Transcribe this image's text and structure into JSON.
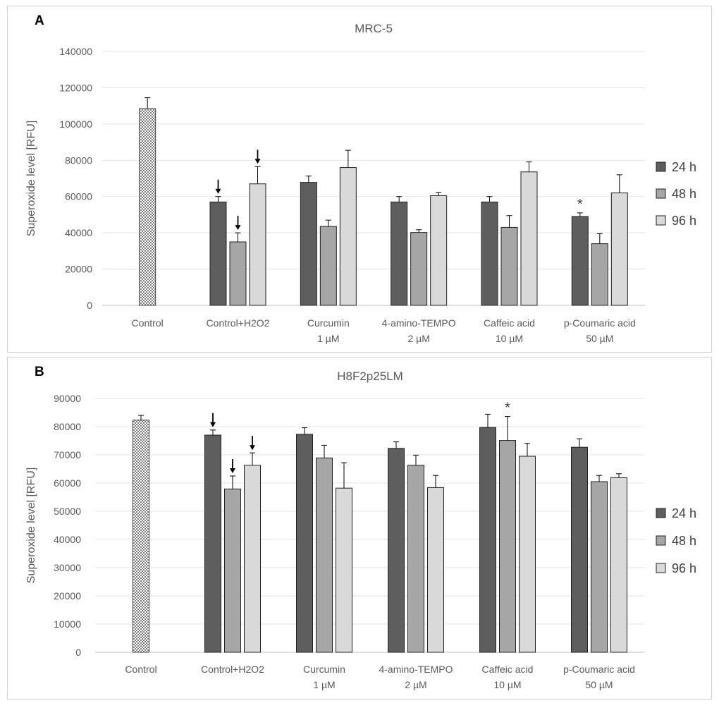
{
  "panels": [
    {
      "letter": "A"
    },
    {
      "letter": "B"
    }
  ],
  "chart_data": [
    {
      "type": "bar",
      "title": "MRC-5",
      "ylabel": "Superoxide level [RFU]",
      "xlabel": "",
      "ylim": [
        0,
        140000
      ],
      "ytick_step": 20000,
      "yticks": [
        "0",
        "20000",
        "40000",
        "60000",
        "80000",
        "100000",
        "120000",
        "140000"
      ],
      "categories": [
        [
          "Control"
        ],
        [
          "Control+H2O2"
        ],
        [
          "Curcumin",
          "1 µM"
        ],
        [
          "4-amino-TEMPO",
          "2 µM"
        ],
        [
          "Caffeic acid",
          "10 µM"
        ],
        [
          "p-Coumaric acid",
          "50 µM"
        ]
      ],
      "control": {
        "value": 108500,
        "error": 6000
      },
      "series": [
        {
          "name": "24 h",
          "color": "#5e5e5e",
          "values": [
            null,
            57000,
            67800,
            57000,
            57000,
            49000
          ],
          "errors": [
            null,
            3000,
            3500,
            3000,
            3000,
            2000
          ]
        },
        {
          "name": "48 h",
          "color": "#a6a6a6",
          "values": [
            null,
            35000,
            43500,
            40200,
            43000,
            34000
          ],
          "errors": [
            null,
            5000,
            3500,
            1500,
            6500,
            5500
          ]
        },
        {
          "name": "96 h",
          "color": "#d9d9d9",
          "values": [
            null,
            67000,
            76000,
            60500,
            73600,
            62000
          ],
          "errors": [
            null,
            9500,
            9500,
            1800,
            5500,
            10000
          ]
        }
      ],
      "arrows": [
        {
          "category": 1,
          "series": 0
        },
        {
          "category": 1,
          "series": 1
        },
        {
          "category": 1,
          "series": 2
        }
      ],
      "asterisks": [
        {
          "category": 5,
          "series": 0,
          "text": "*"
        }
      ],
      "legend": "right"
    },
    {
      "type": "bar",
      "title": "H8F2p25LM",
      "ylabel": "Superoxide level [RFU]",
      "xlabel": "",
      "ylim": [
        0,
        90000
      ],
      "ytick_step": 10000,
      "yticks": [
        "0",
        "10000",
        "20000",
        "30000",
        "40000",
        "50000",
        "60000",
        "70000",
        "80000",
        "90000"
      ],
      "categories": [
        [
          "Control"
        ],
        [
          "Control+H2O2"
        ],
        [
          "Curcumin",
          "1 µM"
        ],
        [
          "4-amino-TEMPO",
          "2 µM"
        ],
        [
          "Caffeic acid",
          "10 µM"
        ],
        [
          "p-Coumaric acid",
          "50 µM"
        ]
      ],
      "control": {
        "value": 82300,
        "error": 1700
      },
      "series": [
        {
          "name": "24 h",
          "color": "#5e5e5e",
          "values": [
            null,
            77000,
            77300,
            72300,
            79700,
            72700
          ],
          "errors": [
            null,
            1800,
            2300,
            2300,
            4700,
            3000
          ]
        },
        {
          "name": "48 h",
          "color": "#a6a6a6",
          "values": [
            null,
            57900,
            68900,
            66300,
            75100,
            60500
          ],
          "errors": [
            null,
            4600,
            4500,
            3600,
            8500,
            2200
          ]
        },
        {
          "name": "96 h",
          "color": "#d9d9d9",
          "values": [
            null,
            66300,
            58200,
            58400,
            69500,
            61900
          ],
          "errors": [
            null,
            4400,
            9000,
            4300,
            4600,
            1400
          ]
        }
      ],
      "arrows": [
        {
          "category": 1,
          "series": 0
        },
        {
          "category": 1,
          "series": 1
        },
        {
          "category": 1,
          "series": 2
        }
      ],
      "asterisks": [
        {
          "category": 4,
          "series": 1,
          "text": "*"
        }
      ],
      "legend": "right"
    }
  ]
}
